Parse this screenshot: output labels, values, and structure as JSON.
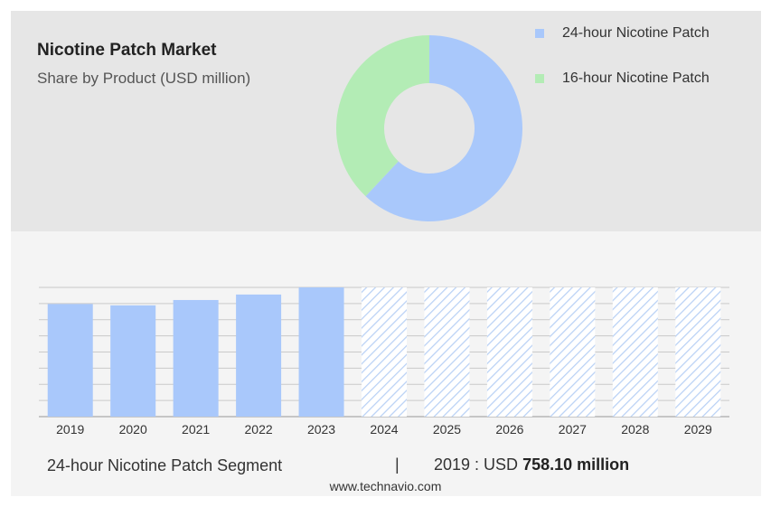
{
  "header": {
    "title": "Nicotine Patch Market",
    "subtitle": "Share by Product (USD million)"
  },
  "colors": {
    "blue": "#a9c8fb",
    "green": "#b3ecb5",
    "hatch": "#b9d1f5"
  },
  "chart_data": [
    {
      "type": "pie",
      "donut": true,
      "categories": [
        "24-hour Nicotine Patch",
        "16-hour Nicotine Patch"
      ],
      "values": [
        62,
        38
      ],
      "colors": [
        "#a9c8fb",
        "#b3ecb5"
      ],
      "legend": "top-right"
    },
    {
      "type": "bar",
      "categories": [
        "2019",
        "2020",
        "2021",
        "2022",
        "2023",
        "2024",
        "2025",
        "2026",
        "2027",
        "2028",
        "2029"
      ],
      "values": [
        758.1,
        749,
        785,
        822,
        870,
        null,
        null,
        null,
        null,
        null,
        null
      ],
      "forecast_categories": [
        "2024",
        "2025",
        "2026",
        "2027",
        "2028",
        "2029"
      ],
      "ylim": [
        0,
        870
      ],
      "grid": true
    }
  ],
  "segment": {
    "label": "24-hour Nicotine Patch Segment",
    "divider": "|",
    "value_prefix": "2019 : USD",
    "value": "758.10 million"
  },
  "footer": "www.technavio.com"
}
